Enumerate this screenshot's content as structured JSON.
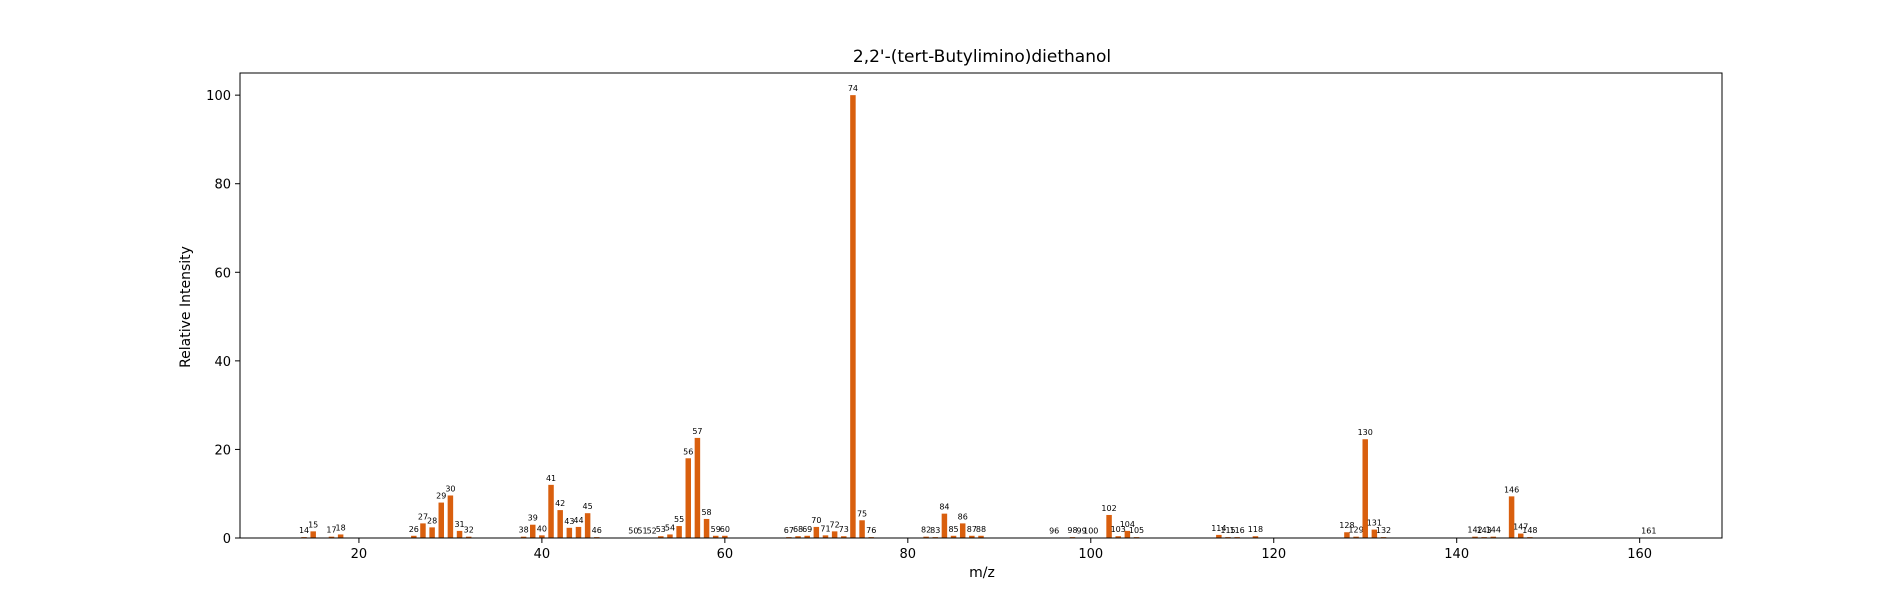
{
  "chart_data": {
    "type": "bar",
    "title": "2,2'-(tert-Butylimino)diethanol",
    "xlabel": "m/z",
    "ylabel": "Relative Intensity",
    "xlim": [
      7,
      169
    ],
    "ylim": [
      0,
      105
    ],
    "xticks": [
      20,
      40,
      60,
      80,
      100,
      120,
      140,
      160
    ],
    "yticks": [
      0,
      20,
      40,
      60,
      80,
      100
    ],
    "grid": false,
    "bar_color": "#d95f0e",
    "x": [
      14,
      15,
      17,
      18,
      26,
      27,
      28,
      29,
      30,
      31,
      32,
      38,
      39,
      40,
      41,
      42,
      43,
      44,
      45,
      46,
      50,
      51,
      52,
      53,
      54,
      55,
      56,
      57,
      58,
      59,
      60,
      67,
      68,
      69,
      70,
      71,
      72,
      73,
      74,
      75,
      76,
      82,
      83,
      84,
      85,
      86,
      87,
      88,
      96,
      98,
      99,
      100,
      102,
      103,
      104,
      105,
      114,
      115,
      116,
      118,
      128,
      129,
      130,
      131,
      132,
      142,
      143,
      144,
      146,
      147,
      148,
      161
    ],
    "values": [
      0.2,
      1.5,
      0.3,
      0.8,
      0.5,
      3.3,
      2.4,
      8.0,
      9.6,
      1.6,
      0.3,
      0.3,
      3.0,
      0.6,
      12.0,
      6.3,
      2.3,
      2.5,
      5.6,
      0.2,
      0.1,
      0.1,
      0.1,
      0.4,
      0.8,
      2.7,
      18.0,
      22.6,
      4.3,
      0.5,
      0.5,
      0.2,
      0.4,
      0.5,
      2.5,
      0.6,
      1.5,
      0.4,
      100.0,
      4.0,
      0.2,
      0.3,
      0.2,
      5.5,
      0.5,
      3.3,
      0.5,
      0.5,
      0.1,
      0.2,
      0.1,
      0.1,
      5.2,
      0.4,
      1.6,
      0.2,
      0.7,
      0.2,
      0.2,
      0.4,
      1.3,
      0.3,
      22.3,
      1.9,
      0.2,
      0.3,
      0.2,
      0.3,
      9.4,
      1.0,
      0.2,
      0.1
    ],
    "data_labels": [
      "14",
      "15",
      "17",
      "18",
      "26",
      "27",
      "28",
      "29",
      "30",
      "31",
      "32",
      "38",
      "39",
      "40",
      "41",
      "42",
      "43",
      "44",
      "45",
      "46",
      "50",
      "51",
      "52",
      "53",
      "54",
      "55",
      "56",
      "57",
      "58",
      "59",
      "60",
      "67",
      "68",
      "69",
      "70",
      "71",
      "72",
      "73",
      "74",
      "75",
      "76",
      "82",
      "83",
      "84",
      "85",
      "86",
      "87",
      "88",
      "96",
      "98",
      "99",
      "100",
      "102",
      "103",
      "104",
      "105",
      "114",
      "115",
      "116",
      "118",
      "128",
      "129",
      "130",
      "131",
      "132",
      "142",
      "143",
      "144",
      "146",
      "147",
      "148",
      "161"
    ]
  }
}
